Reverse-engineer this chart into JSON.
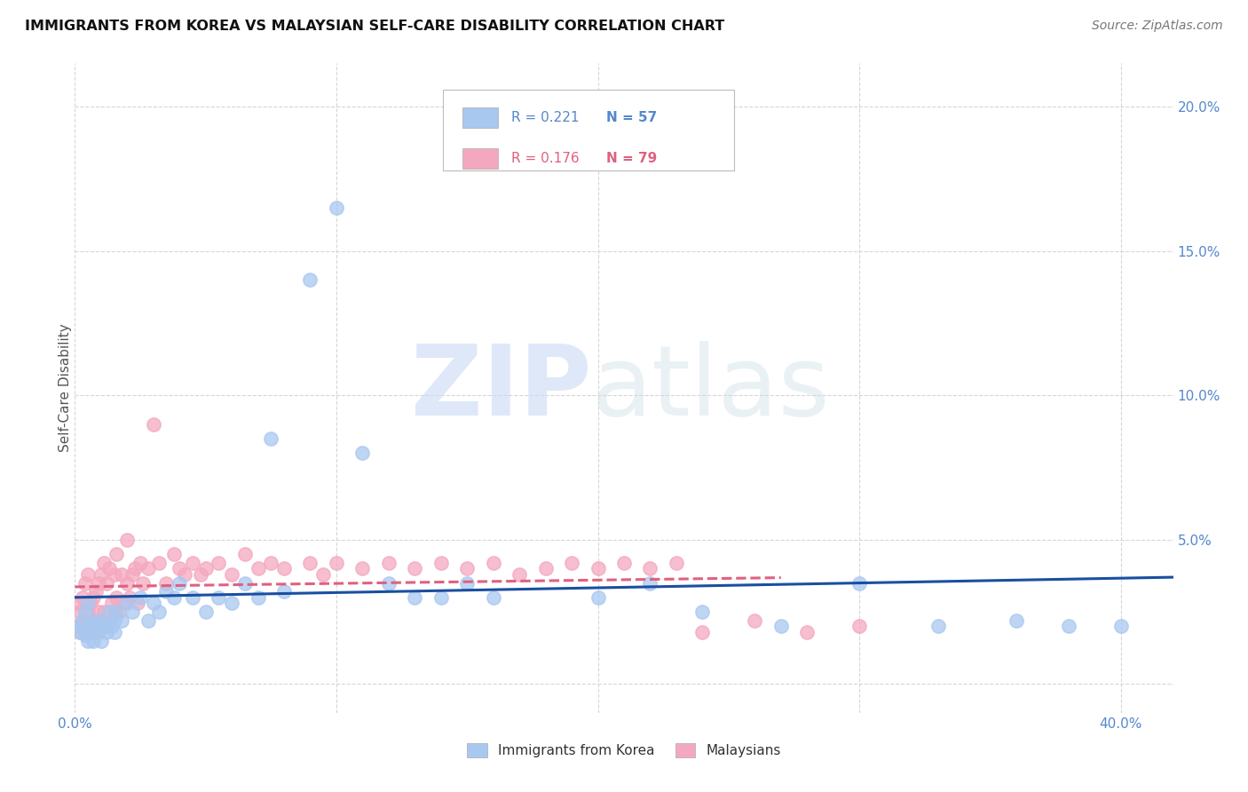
{
  "title": "IMMIGRANTS FROM KOREA VS MALAYSIAN SELF-CARE DISABILITY CORRELATION CHART",
  "source": "Source: ZipAtlas.com",
  "ylabel": "Self-Care Disability",
  "xlim": [
    0.0,
    0.42
  ],
  "ylim": [
    -0.01,
    0.215
  ],
  "korea_R": 0.221,
  "korea_N": 57,
  "malaysia_R": 0.176,
  "malaysia_N": 79,
  "korea_color": "#a8c8f0",
  "malaysia_color": "#f4a8c0",
  "korea_line_color": "#1a4fa0",
  "malaysia_line_color": "#e06080",
  "background_color": "#ffffff",
  "korea_x": [
    0.001,
    0.002,
    0.003,
    0.004,
    0.004,
    0.005,
    0.005,
    0.006,
    0.006,
    0.007,
    0.007,
    0.008,
    0.009,
    0.01,
    0.01,
    0.011,
    0.012,
    0.013,
    0.014,
    0.015,
    0.015,
    0.016,
    0.018,
    0.02,
    0.022,
    0.025,
    0.028,
    0.03,
    0.032,
    0.035,
    0.038,
    0.04,
    0.045,
    0.05,
    0.055,
    0.06,
    0.065,
    0.07,
    0.075,
    0.08,
    0.09,
    0.1,
    0.11,
    0.12,
    0.13,
    0.14,
    0.15,
    0.16,
    0.2,
    0.22,
    0.24,
    0.27,
    0.3,
    0.33,
    0.36,
    0.38,
    0.4
  ],
  "korea_y": [
    0.02,
    0.018,
    0.022,
    0.017,
    0.025,
    0.015,
    0.028,
    0.02,
    0.018,
    0.022,
    0.015,
    0.02,
    0.018,
    0.022,
    0.015,
    0.02,
    0.018,
    0.025,
    0.02,
    0.022,
    0.018,
    0.025,
    0.022,
    0.028,
    0.025,
    0.03,
    0.022,
    0.028,
    0.025,
    0.032,
    0.03,
    0.035,
    0.03,
    0.025,
    0.03,
    0.028,
    0.035,
    0.03,
    0.085,
    0.032,
    0.14,
    0.165,
    0.08,
    0.035,
    0.03,
    0.03,
    0.035,
    0.03,
    0.03,
    0.035,
    0.025,
    0.02,
    0.035,
    0.02,
    0.022,
    0.02,
    0.02
  ],
  "malaysia_x": [
    0.001,
    0.001,
    0.002,
    0.002,
    0.003,
    0.003,
    0.004,
    0.004,
    0.005,
    0.005,
    0.005,
    0.006,
    0.006,
    0.007,
    0.007,
    0.008,
    0.008,
    0.009,
    0.009,
    0.01,
    0.01,
    0.011,
    0.011,
    0.012,
    0.012,
    0.013,
    0.013,
    0.014,
    0.015,
    0.015,
    0.016,
    0.016,
    0.017,
    0.018,
    0.019,
    0.02,
    0.02,
    0.021,
    0.022,
    0.023,
    0.024,
    0.025,
    0.026,
    0.028,
    0.03,
    0.032,
    0.035,
    0.038,
    0.04,
    0.042,
    0.045,
    0.048,
    0.05,
    0.055,
    0.06,
    0.065,
    0.07,
    0.075,
    0.08,
    0.09,
    0.095,
    0.1,
    0.11,
    0.12,
    0.13,
    0.14,
    0.15,
    0.16,
    0.17,
    0.18,
    0.19,
    0.2,
    0.21,
    0.22,
    0.23,
    0.24,
    0.26,
    0.28,
    0.3
  ],
  "malaysia_y": [
    0.02,
    0.028,
    0.018,
    0.025,
    0.022,
    0.03,
    0.02,
    0.035,
    0.018,
    0.025,
    0.038,
    0.02,
    0.028,
    0.022,
    0.03,
    0.018,
    0.032,
    0.025,
    0.035,
    0.022,
    0.038,
    0.025,
    0.042,
    0.02,
    0.035,
    0.022,
    0.04,
    0.028,
    0.025,
    0.038,
    0.03,
    0.045,
    0.025,
    0.038,
    0.028,
    0.035,
    0.05,
    0.03,
    0.038,
    0.04,
    0.028,
    0.042,
    0.035,
    0.04,
    0.09,
    0.042,
    0.035,
    0.045,
    0.04,
    0.038,
    0.042,
    0.038,
    0.04,
    0.042,
    0.038,
    0.045,
    0.04,
    0.042,
    0.04,
    0.042,
    0.038,
    0.042,
    0.04,
    0.042,
    0.04,
    0.042,
    0.04,
    0.042,
    0.038,
    0.04,
    0.042,
    0.04,
    0.042,
    0.04,
    0.042,
    0.018,
    0.022,
    0.018,
    0.02
  ]
}
